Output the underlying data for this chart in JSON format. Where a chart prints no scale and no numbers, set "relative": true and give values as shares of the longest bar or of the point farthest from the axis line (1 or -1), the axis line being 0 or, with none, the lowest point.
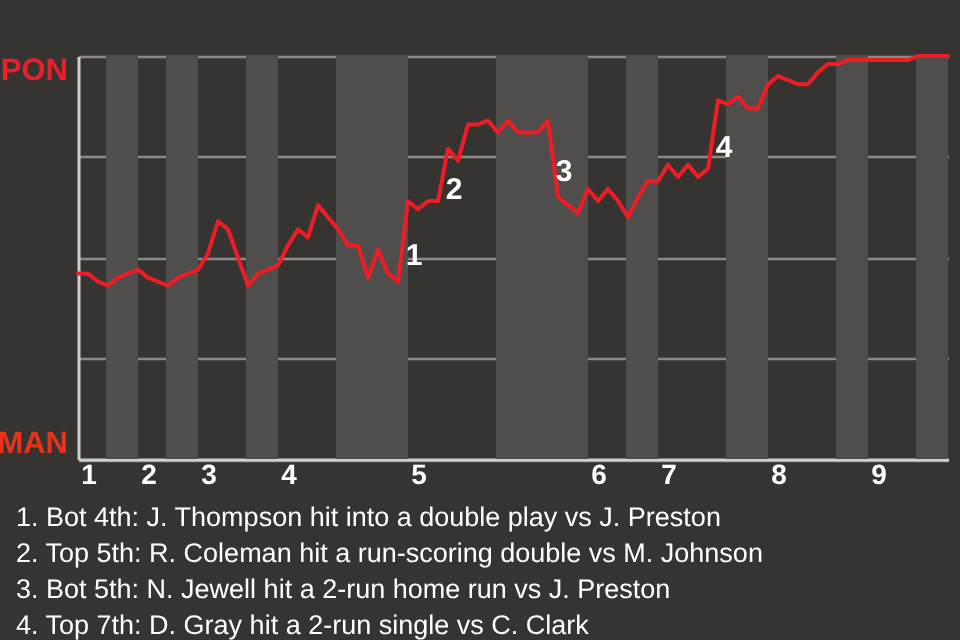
{
  "chart_data": {
    "type": "line",
    "relative": true,
    "categories": [
      null,
      "1",
      null,
      null,
      null,
      null,
      null,
      "2",
      null,
      null,
      null,
      null,
      null,
      "3",
      null,
      null,
      null,
      null,
      null,
      null,
      null,
      "4",
      null,
      null,
      null,
      null,
      null,
      null,
      null,
      null,
      null,
      null,
      null,
      null,
      "5",
      null,
      null,
      null,
      null,
      null,
      null,
      null,
      null,
      null,
      null,
      null,
      null,
      null,
      null,
      null,
      null,
      null,
      "6",
      null,
      null,
      null,
      null,
      null,
      null,
      "7",
      null,
      null,
      null,
      null,
      null,
      null,
      null,
      null,
      null,
      null,
      "8",
      null,
      null,
      null,
      null,
      null,
      null,
      null,
      null,
      null,
      "9",
      null,
      null,
      null,
      null,
      null,
      null,
      null
    ],
    "series": [
      {
        "color": "#ee1c25",
        "values": [
          0.46,
          0.46,
          0.44,
          0.43,
          0.45,
          0.46,
          0.47,
          0.45,
          0.44,
          0.43,
          0.45,
          0.46,
          0.47,
          0.51,
          0.59,
          0.57,
          0.5,
          0.43,
          0.46,
          0.47,
          0.48,
          0.53,
          0.57,
          0.55,
          0.63,
          0.6,
          0.57,
          0.53,
          0.53,
          0.45,
          0.52,
          0.46,
          0.44,
          0.64,
          0.62,
          0.64,
          0.64,
          0.77,
          0.74,
          0.83,
          0.83,
          0.84,
          0.81,
          0.84,
          0.81,
          0.81,
          0.81,
          0.84,
          0.65,
          0.63,
          0.61,
          0.67,
          0.64,
          0.67,
          0.64,
          0.6,
          0.65,
          0.69,
          0.69,
          0.73,
          0.7,
          0.73,
          0.7,
          0.72,
          0.89,
          0.88,
          0.9,
          0.87,
          0.87,
          0.93,
          0.95,
          0.94,
          0.93,
          0.93,
          0.96,
          0.98,
          0.98,
          0.99,
          0.99,
          0.99,
          0.99,
          0.99,
          0.99,
          0.99,
          1,
          1,
          1,
          1
        ]
      }
    ],
    "grid": "y",
    "annotations": [
      "PON",
      "MAN",
      "1",
      "2",
      "3",
      "4",
      "1. Bot 4th: J. Thompson hit into a double play vs J. Preston",
      "2. Top 5th: R. Coleman hit a run-scoring double vs M. Johnson",
      "3. Bot 5th: N. Jewell hit a 2-run home run vs J. Preston",
      "4. Top 7th: D. Gray hit a 2-run single vs C. Clark"
    ],
    "line_style": "solid",
    "marker": "none"
  }
}
